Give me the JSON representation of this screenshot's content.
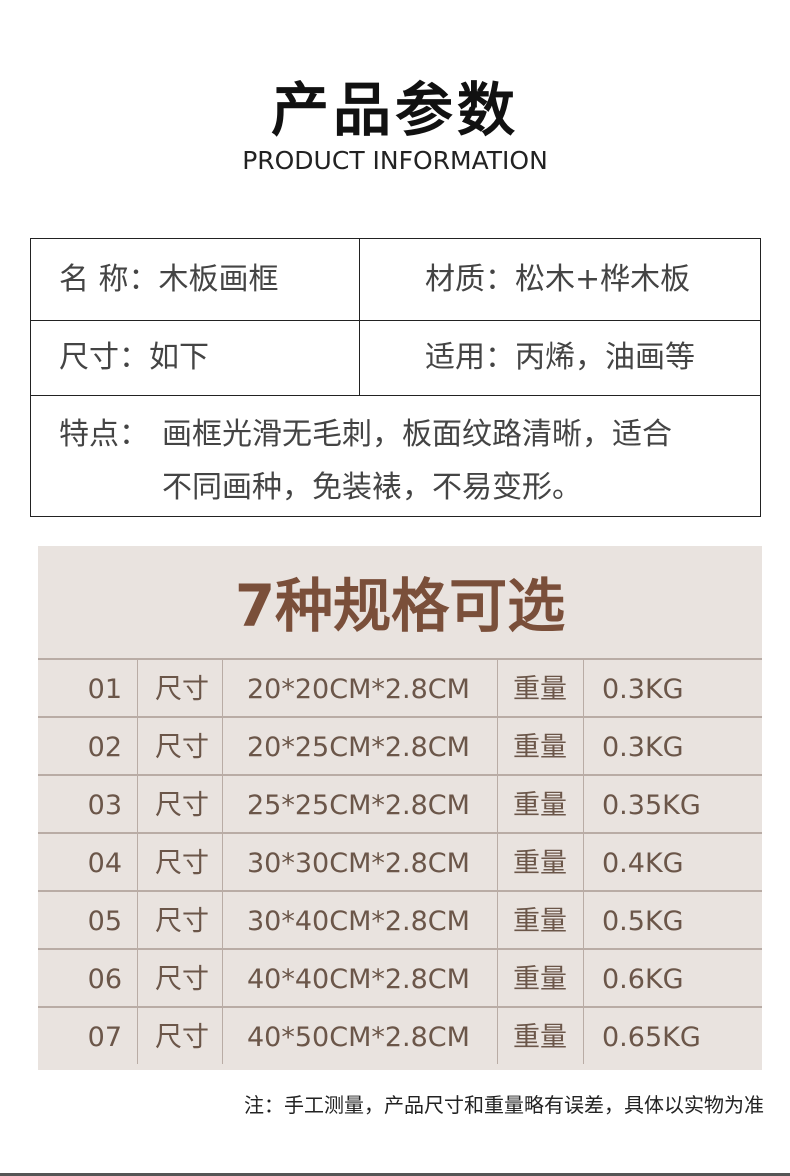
{
  "header": {
    "title": "产品参数",
    "subtitle": "PRODUCT INFORMATION"
  },
  "info": {
    "name": "名 称：木板画框",
    "material": "材质：松木+桦木板",
    "size": "尺寸：如下",
    "usage": "适用：丙烯，油画等",
    "feature_label": "特点：",
    "feature_line1": "画框光滑无毛刺，板面纹路清晰，适合",
    "feature_line2": "不同画种，免装裱，不易变形。"
  },
  "spec": {
    "title": "7种规格可选",
    "size_label": "尺寸",
    "weight_label": "重量",
    "rows": [
      {
        "no": "01",
        "size": "20*20CM*2.8CM",
        "weight": "0.3KG"
      },
      {
        "no": "02",
        "size": "20*25CM*2.8CM",
        "weight": "0.3KG"
      },
      {
        "no": "03",
        "size": "25*25CM*2.8CM",
        "weight": "0.35KG"
      },
      {
        "no": "04",
        "size": "30*30CM*2.8CM",
        "weight": "0.4KG"
      },
      {
        "no": "05",
        "size": "30*40CM*2.8CM",
        "weight": "0.5KG"
      },
      {
        "no": "06",
        "size": "40*40CM*2.8CM",
        "weight": "0.6KG"
      },
      {
        "no": "07",
        "size": "40*50CM*2.8CM",
        "weight": "0.65KG"
      }
    ]
  },
  "note": "注：手工测量，产品尺寸和重量略有误差，具体以实物为准",
  "colors": {
    "spec_bg": "#e9e3df",
    "spec_title": "#7a4f3a",
    "spec_text": "#6b5649"
  }
}
